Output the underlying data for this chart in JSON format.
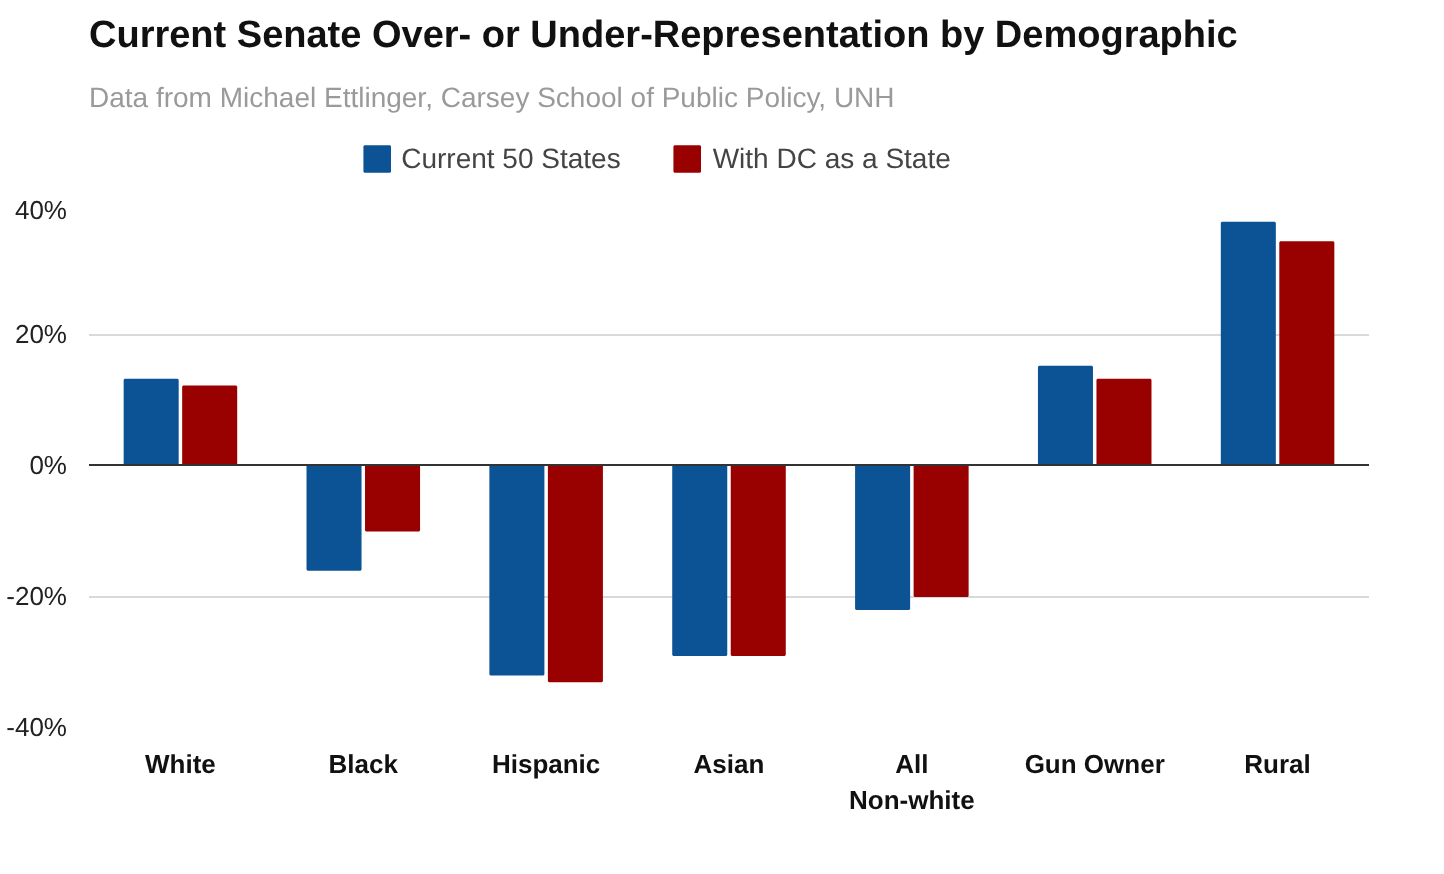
{
  "chart_data": {
    "type": "bar",
    "title": "Current Senate Over- or Under-Representation by Demographic",
    "subtitle": "Data from Michael Ettlinger, Carsey School of Public Policy, UNH",
    "categories": [
      "White",
      "Black",
      "Hispanic",
      "Asian",
      "All\nNon-white",
      "Gun Owner",
      "Rural"
    ],
    "series": [
      {
        "name": "Current 50 States",
        "color": "#0b5394",
        "values": [
          13,
          -16,
          -32,
          -29,
          -22,
          15,
          37
        ]
      },
      {
        "name": "With DC as a State",
        "color": "#990000",
        "values": [
          12,
          -10,
          -33,
          -29,
          -20,
          13,
          34
        ]
      }
    ],
    "ylim": [
      -40,
      40
    ],
    "yticks": [
      {
        "value": -40,
        "label": "-40%"
      },
      {
        "value": -20,
        "label": "-20%"
      },
      {
        "value": 0,
        "label": "0%"
      },
      {
        "value": 20,
        "label": "20%"
      },
      {
        "value": 40,
        "label": "40%"
      }
    ],
    "grid": "y",
    "legend": "top"
  }
}
